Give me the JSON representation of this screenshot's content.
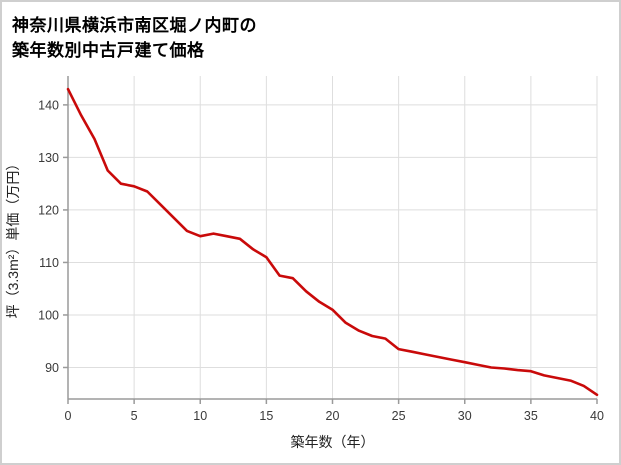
{
  "title": {
    "line1": "神奈川県横浜市南区堀ノ内町の",
    "line2": "築年数別中古戸建て価格"
  },
  "chart_data": {
    "type": "line",
    "title": "神奈川県横浜市南区堀ノ内町の築年数別中古戸建て価格",
    "xlabel": "築年数（年）",
    "ylabel": "坪（3.3m²）単価（万円）",
    "xlim": [
      0,
      40
    ],
    "ylim": [
      84,
      145.5
    ],
    "x_ticks": [
      0,
      5,
      10,
      15,
      20,
      25,
      30,
      35,
      40
    ],
    "y_ticks": [
      90,
      100,
      110,
      120,
      130,
      140
    ],
    "grid": true,
    "legend": "none",
    "line_color": "#c90a0a",
    "grid_color": "#dedede",
    "axis_color": "#9a9a9a",
    "tick_label_color": "#3a3a3a",
    "x": [
      0,
      1,
      2,
      3,
      4,
      5,
      6,
      7,
      8,
      9,
      10,
      11,
      12,
      13,
      14,
      15,
      16,
      17,
      18,
      19,
      20,
      21,
      22,
      23,
      24,
      25,
      26,
      27,
      28,
      29,
      30,
      31,
      32,
      33,
      34,
      35,
      36,
      37,
      38,
      39,
      40
    ],
    "values": [
      143,
      138,
      133.5,
      127.5,
      125,
      124.5,
      123.5,
      121,
      118.5,
      116,
      115,
      115.5,
      115,
      114.5,
      112.5,
      111,
      107.5,
      107,
      104.5,
      102.5,
      101,
      98.5,
      97,
      96,
      95.5,
      93.5,
      93,
      92.5,
      92,
      91.5,
      91,
      90.5,
      90,
      89.8,
      89.5,
      89.3,
      88.5,
      88,
      87.5,
      86.5,
      84.8
    ]
  }
}
